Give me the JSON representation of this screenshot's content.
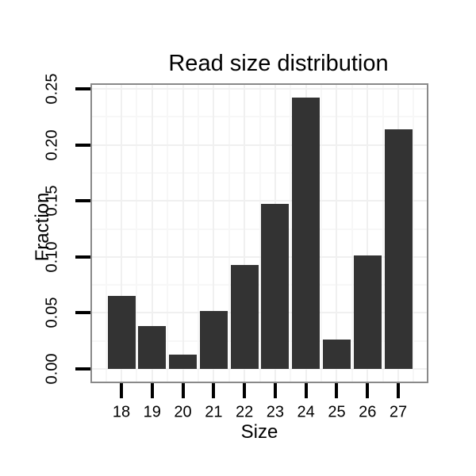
{
  "figure": {
    "background_color": "#ffffff",
    "text_color": "#000000"
  },
  "chart_data": {
    "type": "bar",
    "title": "Read size distribution",
    "xlabel": "Size",
    "ylabel": "Fraction",
    "categories": [
      "18",
      "19",
      "20",
      "21",
      "22",
      "23",
      "24",
      "25",
      "26",
      "27"
    ],
    "values": [
      0.065,
      0.038,
      0.013,
      0.052,
      0.093,
      0.147,
      0.242,
      0.026,
      0.101,
      0.214
    ],
    "ylim": [
      0,
      0.25
    ],
    "yticks": [
      0.0,
      0.05,
      0.1,
      0.15,
      0.2,
      0.25
    ],
    "ytick_labels": [
      "0.00",
      "0.05",
      "0.10",
      "0.15",
      "0.20",
      "0.25"
    ],
    "grid": "major+minor",
    "legend_position": "none",
    "bar_color": "#333333",
    "panel_border_color": "#898989",
    "gridline_major_color": "#f0f0f0",
    "gridline_minor_color": "#f7f7f7",
    "tick_color": "#000000"
  }
}
